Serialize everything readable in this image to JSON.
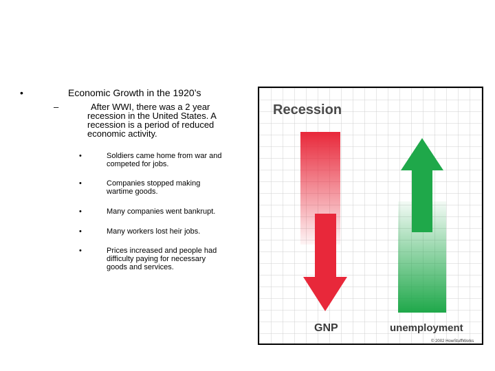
{
  "slide": {
    "bullet_symbol": "•",
    "dash_symbol": "–",
    "heading": "Economic Growth in the 1920’s",
    "subpoint_lines": [
      "After WWI, there was a 2 year",
      "recession in the United States. A",
      "recession is a period of reduced",
      "economic activity."
    ],
    "items": [
      {
        "bullet": "•",
        "lines": [
          "Soldiers came home from war and",
          "competed for jobs."
        ]
      },
      {
        "bullet": "•",
        "lines": [
          "Companies stopped making",
          "wartime goods."
        ]
      },
      {
        "bullet": "•",
        "lines": [
          "Many companies went bankrupt."
        ]
      },
      {
        "bullet": "•",
        "lines": [
          "Many workers lost heir jobs."
        ]
      },
      {
        "bullet": "•",
        "lines": [
          "Prices increased and people had",
          "difficulty paying for necessary",
          "goods and services."
        ]
      }
    ]
  },
  "graphic": {
    "title": "Recession",
    "left_label": "GNP",
    "right_label": "unemployment",
    "credit": "© 2002 HowStuffWorks",
    "colors": {
      "red": "#e8283a",
      "green": "#1fa84a",
      "grid": "#cfcfcf"
    }
  }
}
